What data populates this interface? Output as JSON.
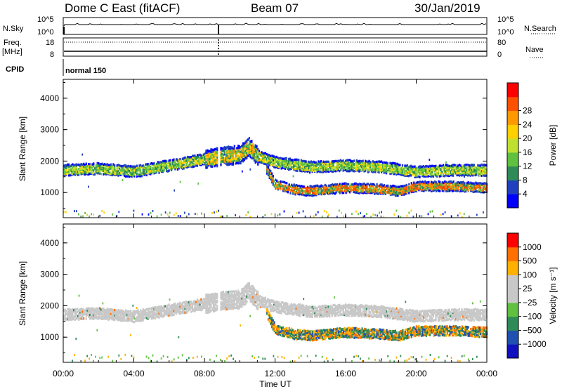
{
  "header": {
    "station": "Dome C East (fitACF)",
    "beam": "Beam 07",
    "date": "30/Jan/2019"
  },
  "top_panels": {
    "nsky_label": "N.Sky",
    "nsearch_label": "N.Search",
    "nsky_ticks": [
      "10^5",
      "10^0"
    ],
    "nsky_right_ticks": [
      "10^5",
      "10^0"
    ],
    "freq_label": "Freq.",
    "freq_unit": "[MHz]",
    "freq_ticks": [
      "18",
      "8"
    ],
    "nave_label": "Nave",
    "nave_ticks": [
      "80",
      "0"
    ],
    "cpid_label": "CPID",
    "cpid_value": "normal 150"
  },
  "chart_data": [
    {
      "type": "heatmap",
      "panel": "power",
      "xlabel": "",
      "ylabel": "Slant Range [km]",
      "x_ticks": [
        "00:00",
        "04:00",
        "08:00",
        "12:00",
        "16:00",
        "20:00",
        "00:00"
      ],
      "y_ticks": [
        "1000",
        "2000",
        "3000",
        "4000"
      ],
      "xlim": [
        0,
        24
      ],
      "ylim": [
        200,
        4600
      ],
      "colorbar": {
        "label": "Power [dB]",
        "ticks": [
          "4",
          "8",
          "12",
          "16",
          "20",
          "24",
          "28"
        ],
        "colors": [
          "#0000ff",
          "#2040c0",
          "#2e8b57",
          "#60c040",
          "#c0e030",
          "#ffd000",
          "#ff9900",
          "#ff5000",
          "#ff0000"
        ]
      },
      "bands": [
        {
          "name": "upper",
          "t": [
            0,
            2,
            4,
            6,
            8,
            9,
            10,
            10.5,
            11,
            12,
            14,
            16,
            18,
            20,
            22,
            24
          ],
          "km": [
            1750,
            1800,
            1700,
            1900,
            2100,
            2200,
            2250,
            2500,
            2200,
            2000,
            1850,
            1900,
            1850,
            1700,
            1750,
            1750
          ]
        },
        {
          "name": "lower",
          "t": [
            11.5,
            12,
            13,
            14,
            16,
            18,
            19,
            20,
            22,
            24
          ],
          "km": [
            1800,
            1300,
            1150,
            1100,
            1200,
            1150,
            1100,
            1250,
            1250,
            1200
          ]
        }
      ]
    },
    {
      "type": "heatmap",
      "panel": "velocity",
      "xlabel": "Time UT",
      "ylabel": "Slant Range [km]",
      "x_ticks": [
        "00:00",
        "04:00",
        "08:00",
        "12:00",
        "16:00",
        "20:00",
        "00:00"
      ],
      "y_ticks": [
        "1000",
        "2000",
        "3000",
        "4000"
      ],
      "xlim": [
        0,
        24
      ],
      "ylim": [
        200,
        4600
      ],
      "colorbar": {
        "label": "Velocity [m s⁻¹]",
        "ticks": [
          "1000",
          "500",
          "100",
          "25",
          "−25",
          "−100",
          "−500",
          "−1000"
        ],
        "colors": [
          "#1010c0",
          "#2050b0",
          "#2e8b57",
          "#60c040",
          "#c8c8c8",
          "#c8c8c8",
          "#ffb000",
          "#ff7000",
          "#ff0000"
        ]
      }
    }
  ]
}
